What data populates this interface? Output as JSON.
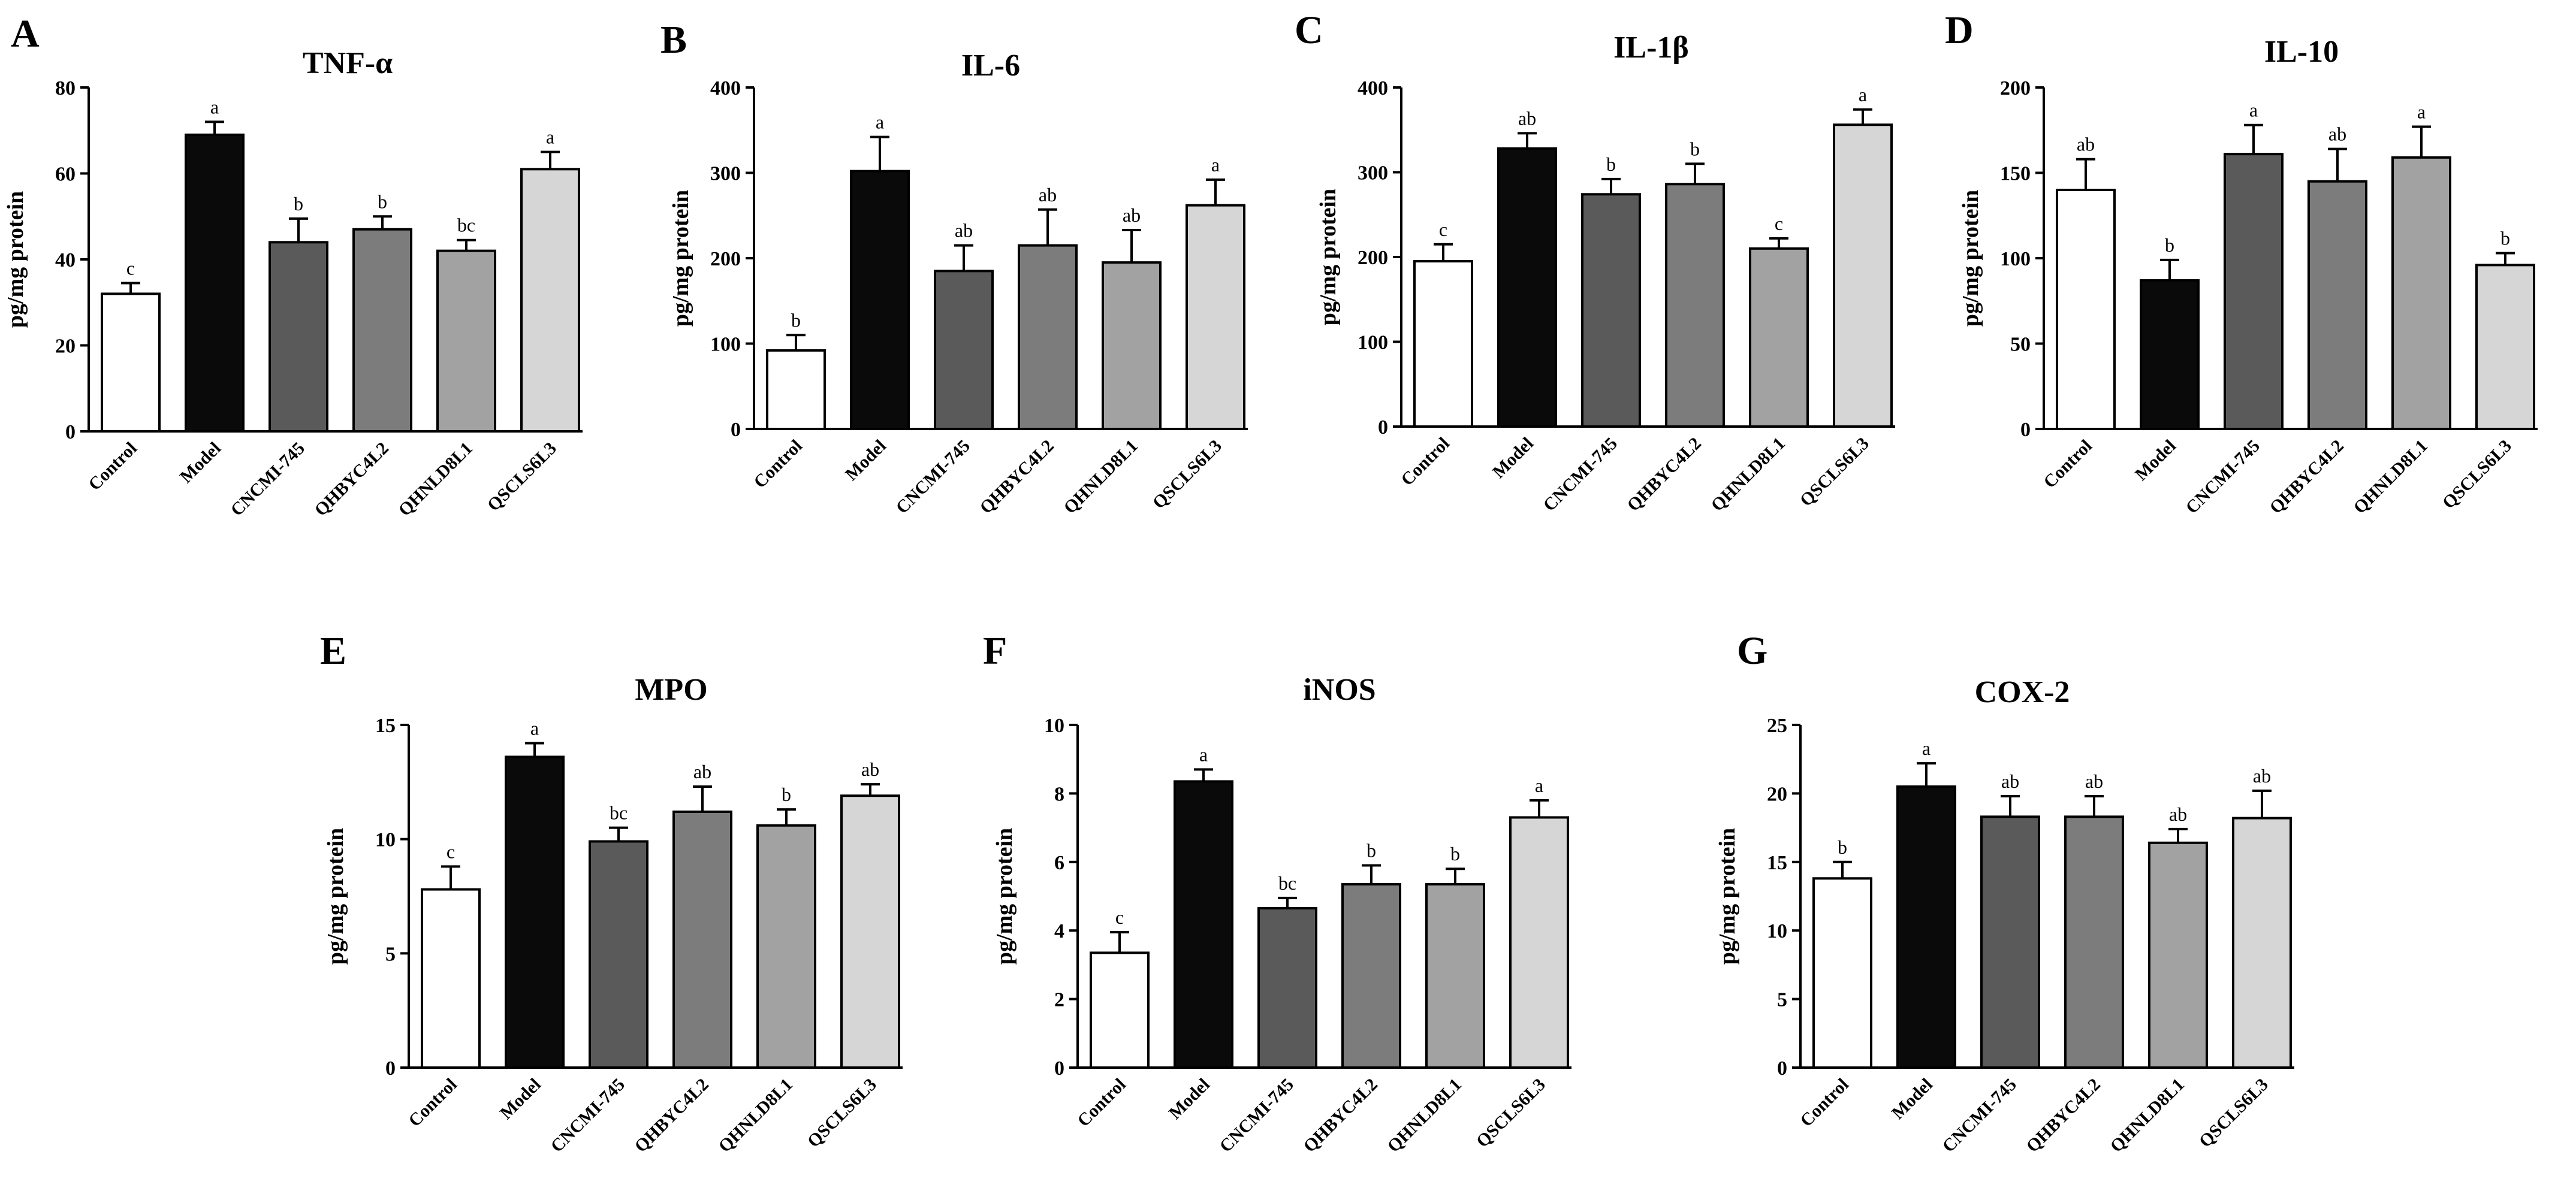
{
  "figure": {
    "groups": [
      "Control",
      "Model",
      "CNCMI-745",
      "QHBYC4L2",
      "QHNLD8L1",
      "QSCLS6L3"
    ],
    "bar_colors": [
      "#ffffff",
      "#0a0a0a",
      "#5a5a5a",
      "#7c7c7c",
      "#a2a2a2",
      "#d6d6d6"
    ],
    "ylabel": "pg/mg protein"
  },
  "chart_data": [
    {
      "type": "bar",
      "panel": "A",
      "title": "TNF-α",
      "ylabel": "pg/mg protein",
      "categories": [
        "Control",
        "Model",
        "CNCMI-745",
        "QHBYC4L2",
        "QHNLD8L1",
        "QSCLS6L3"
      ],
      "values": [
        32,
        69,
        44,
        47,
        42,
        61
      ],
      "errors": [
        2.5,
        3,
        5.5,
        3,
        2.5,
        4
      ],
      "letters": [
        "c",
        "a",
        "b",
        "b",
        "bc",
        "a"
      ],
      "ylim": [
        0,
        80
      ],
      "yticks": [
        0,
        20,
        40,
        60,
        80
      ]
    },
    {
      "type": "bar",
      "panel": "B",
      "title": "IL-6",
      "ylabel": "pg/mg protein",
      "categories": [
        "Control",
        "Model",
        "CNCMI-745",
        "QHBYC4L2",
        "QHNLD8L1",
        "QSCLS6L3"
      ],
      "values": [
        92,
        302,
        185,
        215,
        195,
        262
      ],
      "errors": [
        18,
        40,
        30,
        42,
        38,
        30
      ],
      "letters": [
        "b",
        "a",
        "ab",
        "ab",
        "ab",
        "a"
      ],
      "ylim": [
        0,
        400
      ],
      "yticks": [
        0,
        100,
        200,
        300,
        400
      ]
    },
    {
      "type": "bar",
      "panel": "C",
      "title": "IL-1β",
      "ylabel": "pg/mg protein",
      "categories": [
        "Control",
        "Model",
        "CNCMI-745",
        "QHBYC4L2",
        "QHNLD8L1",
        "QSCLS6L3"
      ],
      "values": [
        195,
        328,
        274,
        286,
        210,
        356
      ],
      "errors": [
        20,
        18,
        18,
        24,
        12,
        18
      ],
      "letters": [
        "c",
        "ab",
        "b",
        "b",
        "c",
        "a"
      ],
      "ylim": [
        0,
        400
      ],
      "yticks": [
        0,
        100,
        200,
        300,
        400
      ]
    },
    {
      "type": "bar",
      "panel": "D",
      "title": "IL-10",
      "ylabel": "pg/mg protein",
      "categories": [
        "Control",
        "Model",
        "CNCMI-745",
        "QHBYC4L2",
        "QHNLD8L1",
        "QSCLS6L3"
      ],
      "values": [
        140,
        87,
        161,
        145,
        159,
        96
      ],
      "errors": [
        18,
        12,
        17,
        19,
        18,
        7
      ],
      "letters": [
        "ab",
        "b",
        "a",
        "ab",
        "a",
        "b"
      ],
      "ylim": [
        0,
        200
      ],
      "yticks": [
        0,
        50,
        100,
        150,
        200
      ]
    },
    {
      "type": "bar",
      "panel": "E",
      "title": "MPO",
      "ylabel": "pg/mg protein",
      "categories": [
        "Control",
        "Model",
        "CNCMI-745",
        "QHBYC4L2",
        "QHNLD8L1",
        "QSCLS6L3"
      ],
      "values": [
        7.8,
        13.6,
        9.9,
        11.2,
        10.6,
        11.9
      ],
      "errors": [
        1.0,
        0.6,
        0.6,
        1.1,
        0.7,
        0.5
      ],
      "letters": [
        "c",
        "a",
        "bc",
        "ab",
        "b",
        "ab"
      ],
      "ylim": [
        0,
        15
      ],
      "yticks": [
        0,
        5,
        10,
        15
      ]
    },
    {
      "type": "bar",
      "panel": "F",
      "title": "iNOS",
      "ylabel": "pg/mg protein",
      "categories": [
        "Control",
        "Model",
        "CNCMI-745",
        "QHBYC4L2",
        "QHNLD8L1",
        "QSCLS6L3"
      ],
      "values": [
        3.35,
        8.35,
        4.65,
        5.35,
        5.35,
        7.3
      ],
      "errors": [
        0.6,
        0.35,
        0.3,
        0.55,
        0.45,
        0.5
      ],
      "letters": [
        "c",
        "a",
        "bc",
        "b",
        "b",
        "a"
      ],
      "ylim": [
        0,
        10
      ],
      "yticks": [
        0,
        2,
        4,
        6,
        8,
        10
      ]
    },
    {
      "type": "bar",
      "panel": "G",
      "title": "COX-2",
      "ylabel": "pg/mg protein",
      "categories": [
        "Control",
        "Model",
        "CNCMI-745",
        "QHBYC4L2",
        "QHNLD8L1",
        "QSCLS6L3"
      ],
      "values": [
        13.8,
        20.5,
        18.3,
        18.3,
        16.4,
        18.2
      ],
      "errors": [
        1.2,
        1.7,
        1.5,
        1.5,
        1.0,
        2.0
      ],
      "letters": [
        "b",
        "a",
        "ab",
        "ab",
        "ab",
        "ab"
      ],
      "ylim": [
        0,
        25
      ],
      "yticks": [
        0,
        5,
        10,
        15,
        20,
        25
      ]
    }
  ]
}
